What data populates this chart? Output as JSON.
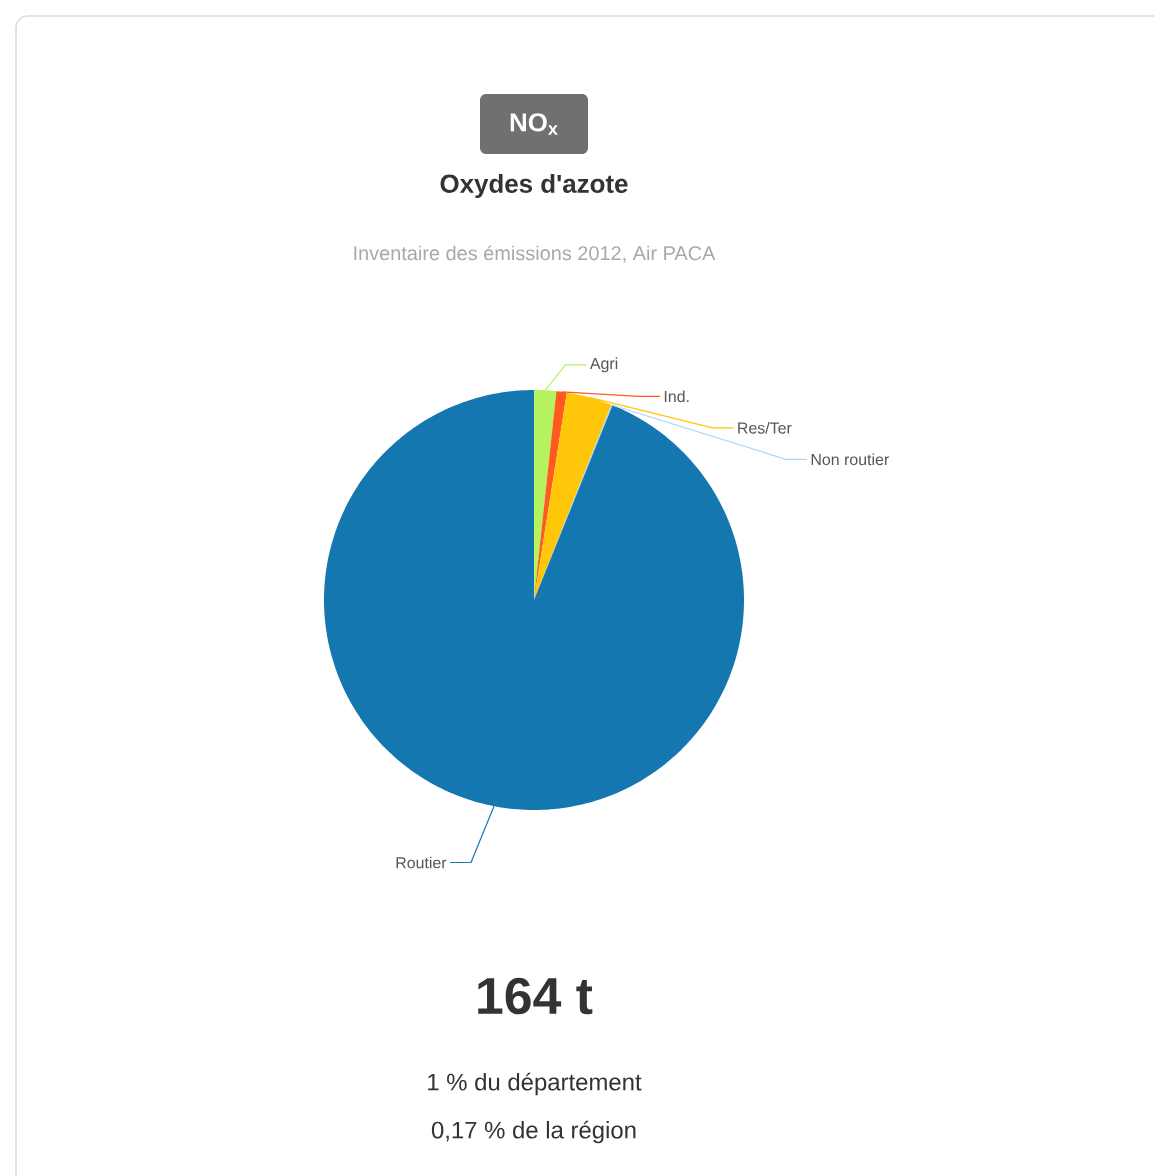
{
  "chart_data": {
    "type": "pie",
    "title": "NO$_{x}$",
    "subtitle": "Oxydes d'azote",
    "categories": [
      "Agri",
      "Ind.",
      "Res/Ter",
      "Non routier",
      "Routier"
    ],
    "values": [
      1.7,
      0.8,
      3.5,
      0.1,
      93.9
    ],
    "colors": [
      "#b4f25e",
      "#ff5a1f",
      "#ffc60a",
      "#a8d8ff",
      "#1577b0"
    ],
    "annotations": [
      "Inventaire des émissions 2012, Air PACA",
      "164 t",
      "1 % du département",
      "0,17 % de la région"
    ]
  }
}
